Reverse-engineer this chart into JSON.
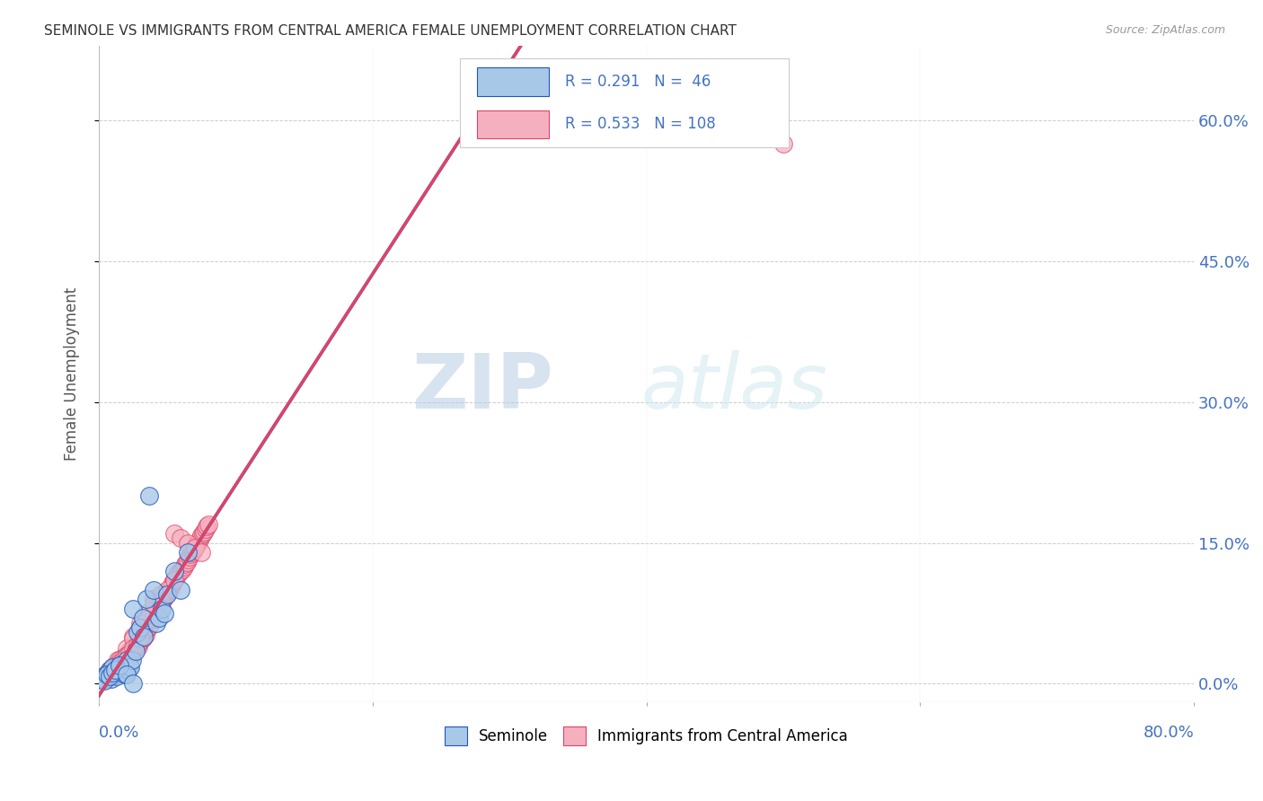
{
  "title": "SEMINOLE VS IMMIGRANTS FROM CENTRAL AMERICA FEMALE UNEMPLOYMENT CORRELATION CHART",
  "source": "Source: ZipAtlas.com",
  "ylabel": "Female Unemployment",
  "seminole_R": 0.291,
  "seminole_N": 46,
  "immigrants_R": 0.533,
  "immigrants_N": 108,
  "seminole_color": "#a8c8e8",
  "immigrants_color": "#f5b0c0",
  "seminole_line_color": "#2255bb",
  "immigrants_line_color": "#dd4466",
  "seminole_scatter": {
    "x": [
      0.005,
      0.006,
      0.007,
      0.008,
      0.009,
      0.01,
      0.011,
      0.012,
      0.013,
      0.014,
      0.015,
      0.016,
      0.017,
      0.018,
      0.019,
      0.02,
      0.021,
      0.022,
      0.023,
      0.024,
      0.025,
      0.027,
      0.028,
      0.03,
      0.032,
      0.033,
      0.035,
      0.037,
      0.04,
      0.042,
      0.044,
      0.046,
      0.048,
      0.05,
      0.055,
      0.06,
      0.065,
      0.003,
      0.004,
      0.006,
      0.008,
      0.01,
      0.012,
      0.015,
      0.02,
      0.025
    ],
    "y": [
      0.01,
      0.008,
      0.012,
      0.015,
      0.005,
      0.018,
      0.01,
      0.012,
      0.008,
      0.015,
      0.02,
      0.015,
      0.018,
      0.012,
      0.01,
      0.025,
      0.015,
      0.02,
      0.018,
      0.025,
      0.08,
      0.035,
      0.055,
      0.06,
      0.07,
      0.05,
      0.09,
      0.2,
      0.1,
      0.065,
      0.07,
      0.08,
      0.075,
      0.095,
      0.12,
      0.1,
      0.14,
      0.005,
      0.003,
      0.01,
      0.008,
      0.012,
      0.015,
      0.02,
      0.01,
      0.0
    ]
  },
  "immigrants_scatter": {
    "x": [
      0.003,
      0.005,
      0.006,
      0.007,
      0.008,
      0.009,
      0.01,
      0.011,
      0.012,
      0.013,
      0.014,
      0.015,
      0.016,
      0.017,
      0.018,
      0.019,
      0.02,
      0.021,
      0.022,
      0.023,
      0.024,
      0.025,
      0.026,
      0.027,
      0.028,
      0.029,
      0.03,
      0.031,
      0.032,
      0.033,
      0.034,
      0.035,
      0.036,
      0.037,
      0.038,
      0.039,
      0.04,
      0.042,
      0.043,
      0.044,
      0.045,
      0.046,
      0.047,
      0.048,
      0.049,
      0.05,
      0.052,
      0.053,
      0.054,
      0.055,
      0.056,
      0.057,
      0.058,
      0.06,
      0.061,
      0.062,
      0.063,
      0.064,
      0.065,
      0.066,
      0.067,
      0.068,
      0.069,
      0.07,
      0.071,
      0.072,
      0.073,
      0.074,
      0.075,
      0.076,
      0.077,
      0.078,
      0.079,
      0.08,
      0.055,
      0.06,
      0.065,
      0.07,
      0.075,
      0.04,
      0.045,
      0.05,
      0.055,
      0.03,
      0.035,
      0.04,
      0.045,
      0.025,
      0.03,
      0.035,
      0.02,
      0.025,
      0.015,
      0.02,
      0.01,
      0.015,
      0.005,
      0.007,
      0.01,
      0.012,
      0.015,
      0.018,
      0.02,
      0.022,
      0.025,
      0.028,
      0.03,
      0.5
    ],
    "y": [
      0.008,
      0.005,
      0.01,
      0.012,
      0.015,
      0.008,
      0.018,
      0.012,
      0.02,
      0.015,
      0.025,
      0.018,
      0.022,
      0.02,
      0.028,
      0.025,
      0.03,
      0.028,
      0.035,
      0.03,
      0.038,
      0.032,
      0.04,
      0.038,
      0.042,
      0.04,
      0.045,
      0.05,
      0.048,
      0.055,
      0.052,
      0.058,
      0.06,
      0.062,
      0.065,
      0.068,
      0.07,
      0.08,
      0.075,
      0.085,
      0.082,
      0.088,
      0.09,
      0.092,
      0.095,
      0.098,
      0.1,
      0.105,
      0.108,
      0.11,
      0.112,
      0.115,
      0.118,
      0.12,
      0.122,
      0.125,
      0.128,
      0.13,
      0.132,
      0.135,
      0.138,
      0.14,
      0.142,
      0.145,
      0.148,
      0.15,
      0.152,
      0.155,
      0.158,
      0.16,
      0.162,
      0.165,
      0.168,
      0.17,
      0.16,
      0.155,
      0.15,
      0.145,
      0.14,
      0.09,
      0.095,
      0.1,
      0.11,
      0.065,
      0.075,
      0.085,
      0.088,
      0.05,
      0.06,
      0.068,
      0.038,
      0.048,
      0.025,
      0.03,
      0.015,
      0.018,
      0.01,
      0.012,
      0.015,
      0.018,
      0.022,
      0.025,
      0.03,
      0.032,
      0.038,
      0.042,
      0.048,
      0.575
    ]
  },
  "xlim": [
    0.0,
    0.8
  ],
  "ylim": [
    -0.02,
    0.68
  ],
  "yticks": [
    0.0,
    0.15,
    0.3,
    0.45,
    0.6
  ],
  "ytick_labels": [
    "0.0%",
    "15.0%",
    "30.0%",
    "45.0%",
    "60.0%"
  ],
  "xtick_labels": [
    "0.0%",
    "80.0%"
  ],
  "watermark_zip": "ZIP",
  "watermark_atlas": "atlas",
  "background_color": "#ffffff",
  "grid_color": "#cccccc"
}
